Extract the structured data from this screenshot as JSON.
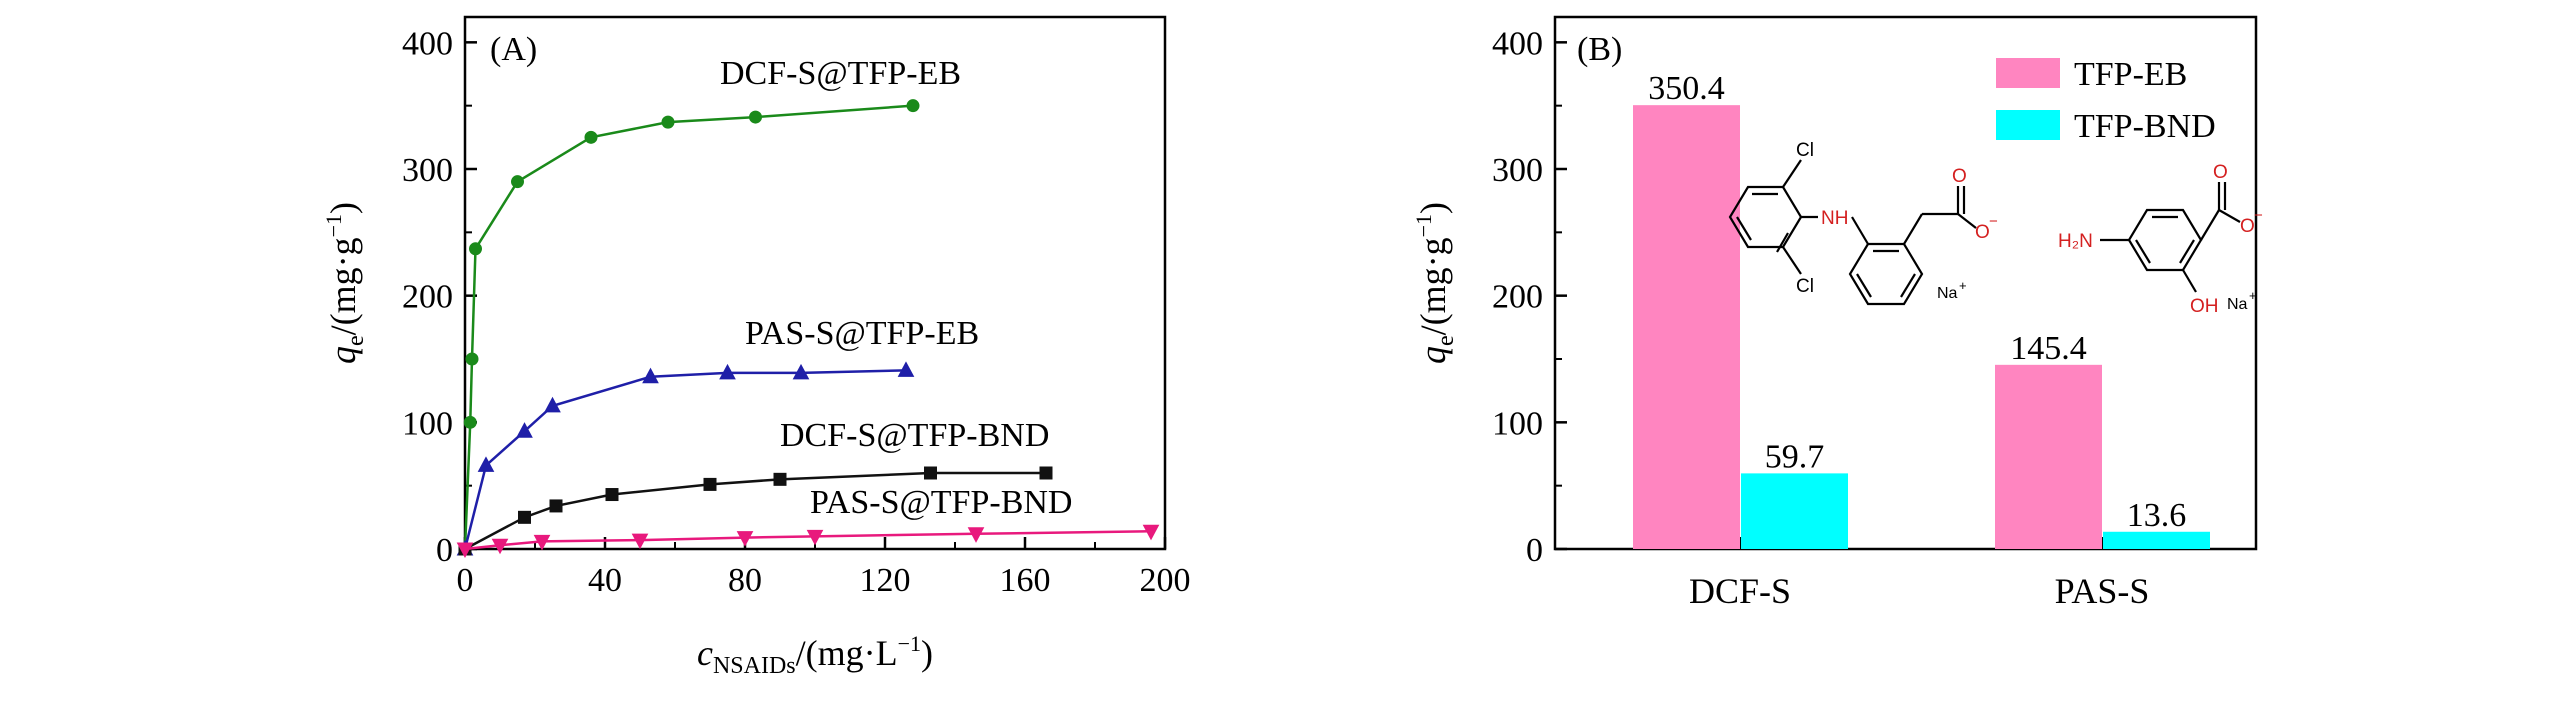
{
  "chart_data": [
    {
      "type": "line",
      "panel_label": "(A)",
      "xlabel": {
        "main": "c",
        "sub": "NSAIDs",
        "unit": "/(mg·L",
        "sup": "−1",
        "close": ")"
      },
      "ylabel": {
        "main": "q",
        "sub": "e",
        "unit": "/(mg·g",
        "sup": "−1",
        "close": ")"
      },
      "xlim": [
        0,
        200
      ],
      "ylim": [
        0,
        420
      ],
      "xticks": [
        0,
        40,
        80,
        120,
        160,
        200
      ],
      "yticks": [
        0,
        100,
        200,
        300,
        400
      ],
      "series": [
        {
          "name": "DCF-S@TFP-EB",
          "color": "#1a8a1a",
          "marker": "circle",
          "x": [
            1.5,
            2,
            3,
            15,
            36,
            58,
            83,
            128
          ],
          "y": [
            100,
            150,
            237,
            290,
            325,
            337,
            341,
            350
          ]
        },
        {
          "name": "PAS-S@TFP-EB",
          "color": "#1f1fa8",
          "marker": "triangle-up",
          "x": [
            0,
            6,
            17,
            25,
            53,
            75,
            96,
            126
          ],
          "y": [
            0,
            66,
            93,
            113,
            136,
            139,
            139,
            141
          ]
        },
        {
          "name": "DCF-S@TFP-BND",
          "color": "#111111",
          "marker": "square",
          "x": [
            0,
            17,
            26,
            42,
            70,
            90,
            133,
            166
          ],
          "y": [
            0,
            25,
            34,
            43,
            51,
            55,
            60,
            60
          ]
        },
        {
          "name": "PAS-S@TFP-BND",
          "color": "#e8197d",
          "marker": "triangle-down",
          "x": [
            0,
            10,
            22,
            50,
            80,
            100,
            146,
            196
          ],
          "y": [
            0,
            3,
            6,
            7,
            9,
            10,
            12,
            14
          ]
        }
      ]
    },
    {
      "type": "bar",
      "panel_label": "(B)",
      "ylabel": {
        "main": "q",
        "sub": "e",
        "unit": "/(mg·g",
        "sup": "−1",
        "close": ")"
      },
      "categories": [
        "DCF-S",
        "PAS-S"
      ],
      "ylim": [
        0,
        420
      ],
      "yticks": [
        0,
        100,
        200,
        300,
        400
      ],
      "series": [
        {
          "name": "TFP-EB",
          "color": "#ff85c0",
          "values": [
            350.4,
            145.4
          ]
        },
        {
          "name": "TFP-BND",
          "color": "#00ffff",
          "values": [
            59.7,
            13.6
          ]
        }
      ],
      "value_labels": [
        [
          "350.4",
          "145.4"
        ],
        [
          "59.7",
          "13.6"
        ]
      ],
      "legend_position": "top-right",
      "structures": {
        "dcf": {
          "atoms": [
            "Cl",
            "NH",
            "Cl",
            "O",
            "O",
            "−",
            "Na",
            "+"
          ]
        },
        "pas": {
          "atoms": [
            "H₂N",
            "O",
            "O",
            "−",
            "OH",
            "Na",
            "+"
          ]
        }
      }
    }
  ]
}
